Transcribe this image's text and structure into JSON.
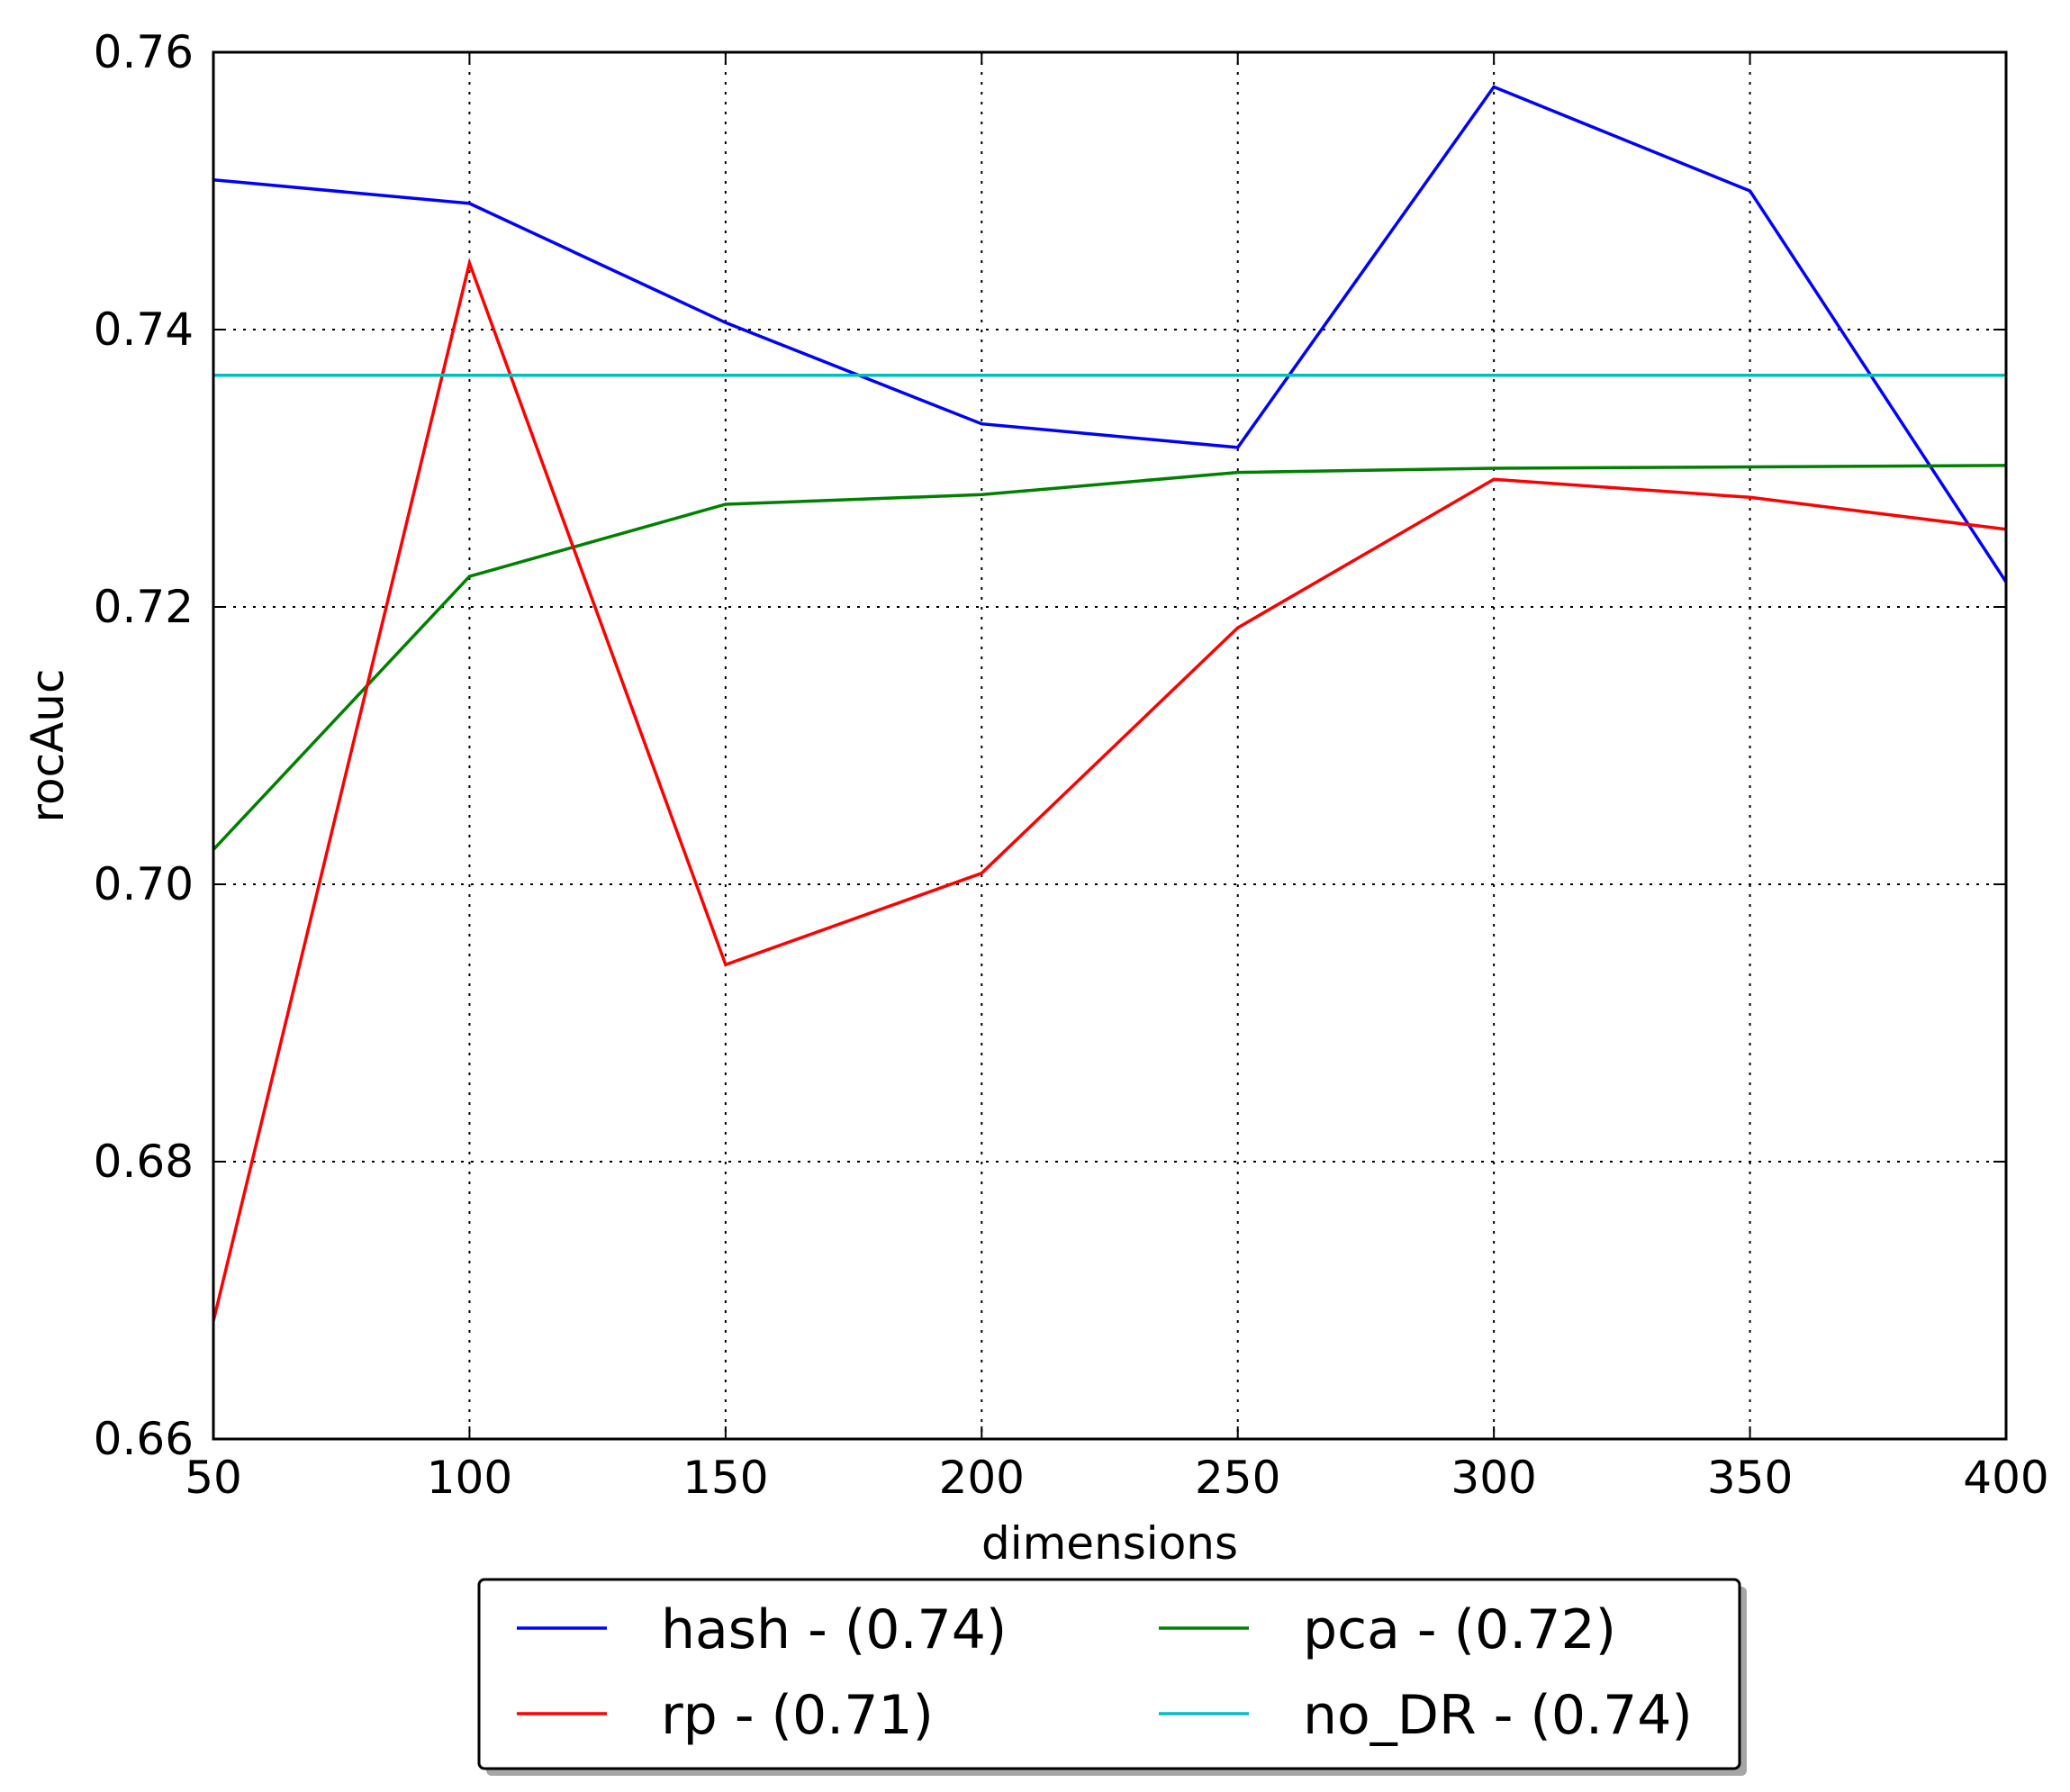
{
  "chart_data": {
    "type": "line",
    "xlabel": "dimensions",
    "ylabel": "rocAuc",
    "xlim": [
      50,
      400
    ],
    "ylim": [
      0.66,
      0.76
    ],
    "x_ticks": [
      "50",
      "100",
      "150",
      "200",
      "250",
      "300",
      "350",
      "400"
    ],
    "y_ticks": [
      "0.66",
      "0.68",
      "0.70",
      "0.72",
      "0.74",
      "0.76"
    ],
    "grid": true,
    "legend_position": "bottom-center, below axes, two columns",
    "x": [
      50,
      100,
      150,
      200,
      250,
      300,
      350,
      400
    ],
    "series": [
      {
        "name": "hash - (0.74)",
        "color": "#0000ff",
        "values": [
          0.7508,
          0.7491,
          0.7405,
          0.7332,
          0.7315,
          0.7575,
          0.75,
          0.7218
        ]
      },
      {
        "name": "pca - (0.72)",
        "color": "#008000",
        "values": [
          0.7025,
          0.7222,
          0.7274,
          0.7281,
          0.7297,
          0.73,
          0.7301,
          0.7302
        ]
      },
      {
        "name": "rp - (0.71)",
        "color": "#ff0000",
        "values": [
          0.6685,
          0.7448,
          0.6942,
          0.7008,
          0.7185,
          0.7292,
          0.7279,
          0.7256
        ]
      },
      {
        "name": "no_DR - (0.74)",
        "color": "#00bfbf",
        "values": [
          0.7367,
          0.7367,
          0.7367,
          0.7367,
          0.7367,
          0.7367,
          0.7367,
          0.7367
        ]
      }
    ]
  }
}
